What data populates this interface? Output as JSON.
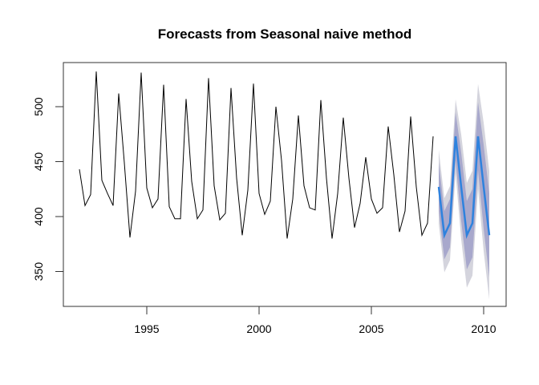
{
  "chart_data": {
    "type": "line",
    "title": "Forecasts from Seasonal naive method",
    "xlabel": "",
    "ylabel": "",
    "xlim": [
      1991.6,
      2010.85
    ],
    "ylim": [
      316,
      538
    ],
    "x_ticks": [
      1995,
      2000,
      2005,
      2010
    ],
    "y_ticks": [
      350,
      400,
      450,
      500
    ],
    "grid": false,
    "legend": "none",
    "frequency": 4,
    "series": [
      {
        "name": "observed",
        "color": "#000000",
        "start": 1992,
        "values": [
          443,
          410,
          420,
          532,
          433,
          421,
          410,
          512,
          449,
          381,
          423,
          531,
          426,
          408,
          416,
          520,
          409,
          398,
          398,
          507,
          432,
          398,
          406,
          526,
          428,
          397,
          403,
          517,
          435,
          383,
          424,
          521,
          421,
          402,
          414,
          500,
          451,
          380,
          416,
          492,
          428,
          408,
          406,
          506,
          435,
          380,
          421,
          490,
          435,
          390,
          412,
          454,
          416,
          403,
          408,
          482,
          438,
          386,
          405,
          491,
          427,
          383,
          394,
          473
        ]
      },
      {
        "name": "point forecast",
        "color": "#2E82DE",
        "start": 2008,
        "values": [
          427,
          383,
          394,
          473,
          427,
          383,
          394,
          473,
          427,
          383
        ]
      }
    ],
    "intervals": [
      {
        "level": "95%",
        "color": "#D4D4DD",
        "lower": [
          393.3,
          349.3,
          360.3,
          439.3,
          379.3,
          335.3,
          346.3,
          425.3,
          368.6,
          324.6
        ],
        "upper": [
          460.7,
          416.7,
          427.7,
          506.7,
          474.7,
          430.7,
          441.7,
          520.7,
          485.4,
          441.4
        ]
      },
      {
        "level": "80%",
        "color": "#A8A8CC",
        "lower": [
          405.0,
          361.0,
          372.0,
          451.0,
          395.9,
          351.9,
          362.9,
          441.9,
          388.8,
          344.8
        ],
        "upper": [
          449.0,
          405.0,
          416.0,
          495.0,
          458.1,
          414.1,
          425.1,
          504.1,
          465.2,
          421.2
        ]
      }
    ]
  }
}
